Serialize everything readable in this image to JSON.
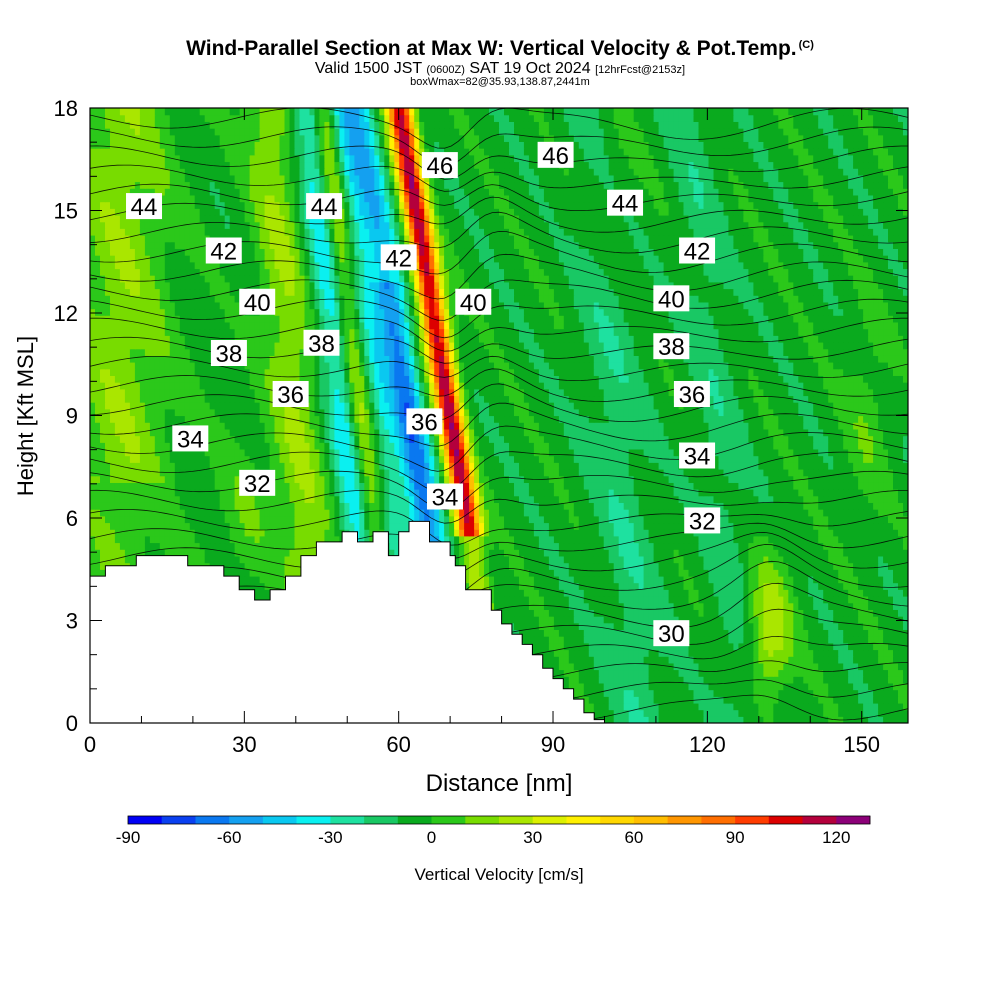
{
  "header": {
    "title": "Wind-Parallel Section at Max W: Vertical Velocity & Pot.Temp.",
    "copyright": "(C)",
    "valid_prefix": "Valid 1500 JST",
    "valid_utc": "(0600Z)",
    "valid_date": "SAT 19 Oct 2024",
    "forecast": "[12hrFcst@2153z]",
    "boxwmax": "boxWmax=82@35.93,138.87,2441m"
  },
  "chart_data": {
    "type": "heatmap",
    "xlabel": "Distance [nm]",
    "ylabel": "Height [Kft MSL]",
    "xlim": [
      0,
      159
    ],
    "ylim": [
      0,
      18
    ],
    "x_ticks": [
      0,
      30,
      60,
      90,
      120,
      150
    ],
    "y_ticks": [
      0,
      3,
      6,
      9,
      12,
      15,
      18
    ],
    "colorbar": {
      "label": "Vertical Velocity [cm/s]",
      "ticks": [
        -90,
        -60,
        -30,
        0,
        30,
        60,
        90,
        120
      ],
      "range": [
        -90,
        130
      ],
      "step": 10,
      "colors": [
        "#0000f5",
        "#0a40f0",
        "#0a78f0",
        "#14a0f0",
        "#0ac8f0",
        "#0af0f0",
        "#1ee1a0",
        "#19c864",
        "#0aaa1e",
        "#2bc81a",
        "#78dc00",
        "#aae600",
        "#dcf000",
        "#fff000",
        "#ffd700",
        "#ffbe00",
        "#ff9600",
        "#ff6e00",
        "#ff3c00",
        "#dc0000",
        "#b4003c",
        "#8c0078"
      ]
    },
    "theta_contour_labels": [
      "30",
      "32",
      "34",
      "36",
      "38",
      "40",
      "42",
      "44",
      "46"
    ],
    "theta_labels_shown": [
      {
        "value": "44",
        "x": 10.5,
        "y": 15.1
      },
      {
        "value": "44",
        "x": 45.5,
        "y": 15.1
      },
      {
        "value": "44",
        "x": 104,
        "y": 15.2
      },
      {
        "value": "46",
        "x": 68,
        "y": 16.3
      },
      {
        "value": "46",
        "x": 90.5,
        "y": 16.6
      },
      {
        "value": "42",
        "x": 26,
        "y": 13.8
      },
      {
        "value": "42",
        "x": 60,
        "y": 13.6
      },
      {
        "value": "42",
        "x": 118,
        "y": 13.8
      },
      {
        "value": "40",
        "x": 32.5,
        "y": 12.3
      },
      {
        "value": "40",
        "x": 74.5,
        "y": 12.3
      },
      {
        "value": "40",
        "x": 113,
        "y": 12.4
      },
      {
        "value": "38",
        "x": 27,
        "y": 10.8
      },
      {
        "value": "38",
        "x": 45,
        "y": 11.1
      },
      {
        "value": "38",
        "x": 113,
        "y": 11.0
      },
      {
        "value": "36",
        "x": 39,
        "y": 9.6
      },
      {
        "value": "36",
        "x": 65,
        "y": 8.8
      },
      {
        "value": "36",
        "x": 117,
        "y": 9.6
      },
      {
        "value": "34",
        "x": 19.5,
        "y": 8.3
      },
      {
        "value": "34",
        "x": 69,
        "y": 6.6
      },
      {
        "value": "34",
        "x": 118,
        "y": 7.8
      },
      {
        "value": "32",
        "x": 32.5,
        "y": 7.0
      },
      {
        "value": "32",
        "x": 119,
        "y": 5.9
      },
      {
        "value": "30",
        "x": 113,
        "y": 2.6
      }
    ],
    "terrain_profile": {
      "x": [
        0,
        3,
        9,
        19,
        26,
        29,
        32,
        35,
        38,
        41,
        44,
        49,
        52,
        55,
        58,
        60,
        62,
        66,
        70,
        71,
        73,
        78,
        80,
        82,
        84,
        86,
        88,
        90,
        92,
        94,
        96,
        98,
        100,
        103,
        106
      ],
      "height": [
        4.3,
        4.6,
        4.9,
        4.6,
        4.3,
        3.9,
        3.6,
        3.9,
        4.3,
        4.9,
        5.3,
        5.6,
        5.3,
        5.6,
        4.9,
        5.6,
        5.9,
        5.3,
        4.9,
        4.6,
        3.9,
        3.3,
        2.9,
        2.6,
        2.3,
        2.0,
        1.6,
        1.3,
        1.0,
        0.7,
        0.3,
        0.1,
        0.0,
        0.0,
        0.0
      ]
    }
  }
}
